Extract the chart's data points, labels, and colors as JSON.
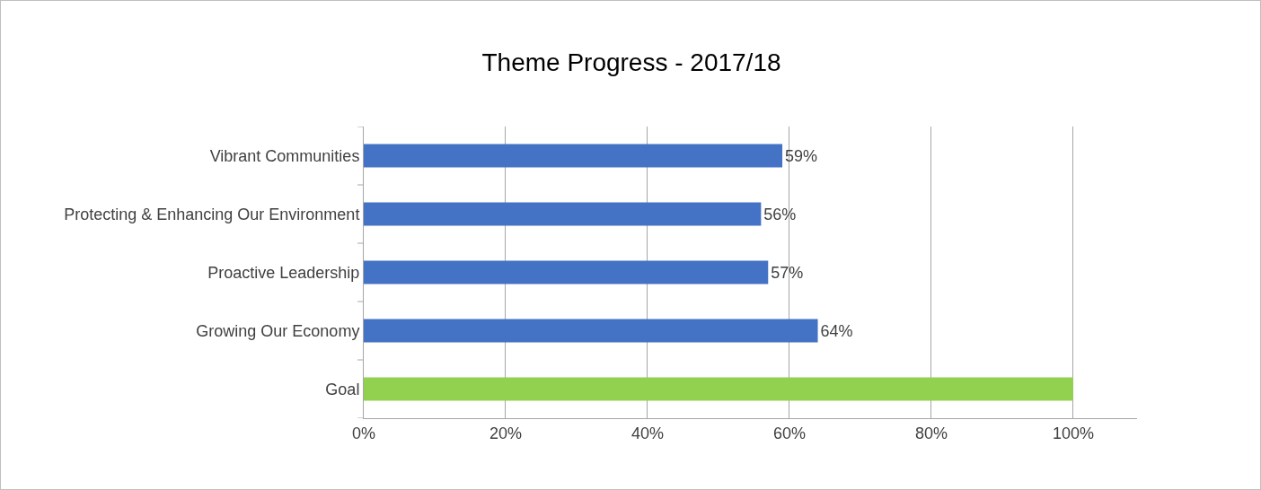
{
  "chart_data": {
    "type": "bar",
    "orientation": "horizontal",
    "title": "Theme Progress - 2017/18",
    "categories": [
      "Vibrant Communities",
      "Protecting & Enhancing Our Environment",
      "Proactive Leadership",
      "Growing Our Economy",
      "Goal"
    ],
    "values": [
      59,
      56,
      57,
      64,
      100
    ],
    "colors": [
      "#4472c4",
      "#4472c4",
      "#4472c4",
      "#4472c4",
      "#92d050"
    ],
    "value_labels": [
      "59%",
      "56%",
      "57%",
      "64%",
      null
    ],
    "xlim": [
      0,
      109
    ],
    "xticks": [
      {
        "value": 0,
        "label": "0%"
      },
      {
        "value": 20,
        "label": "20%"
      },
      {
        "value": 40,
        "label": "40%"
      },
      {
        "value": 60,
        "label": "60%"
      },
      {
        "value": 80,
        "label": "80%"
      },
      {
        "value": 100,
        "label": "100%"
      }
    ],
    "grid": "x"
  }
}
